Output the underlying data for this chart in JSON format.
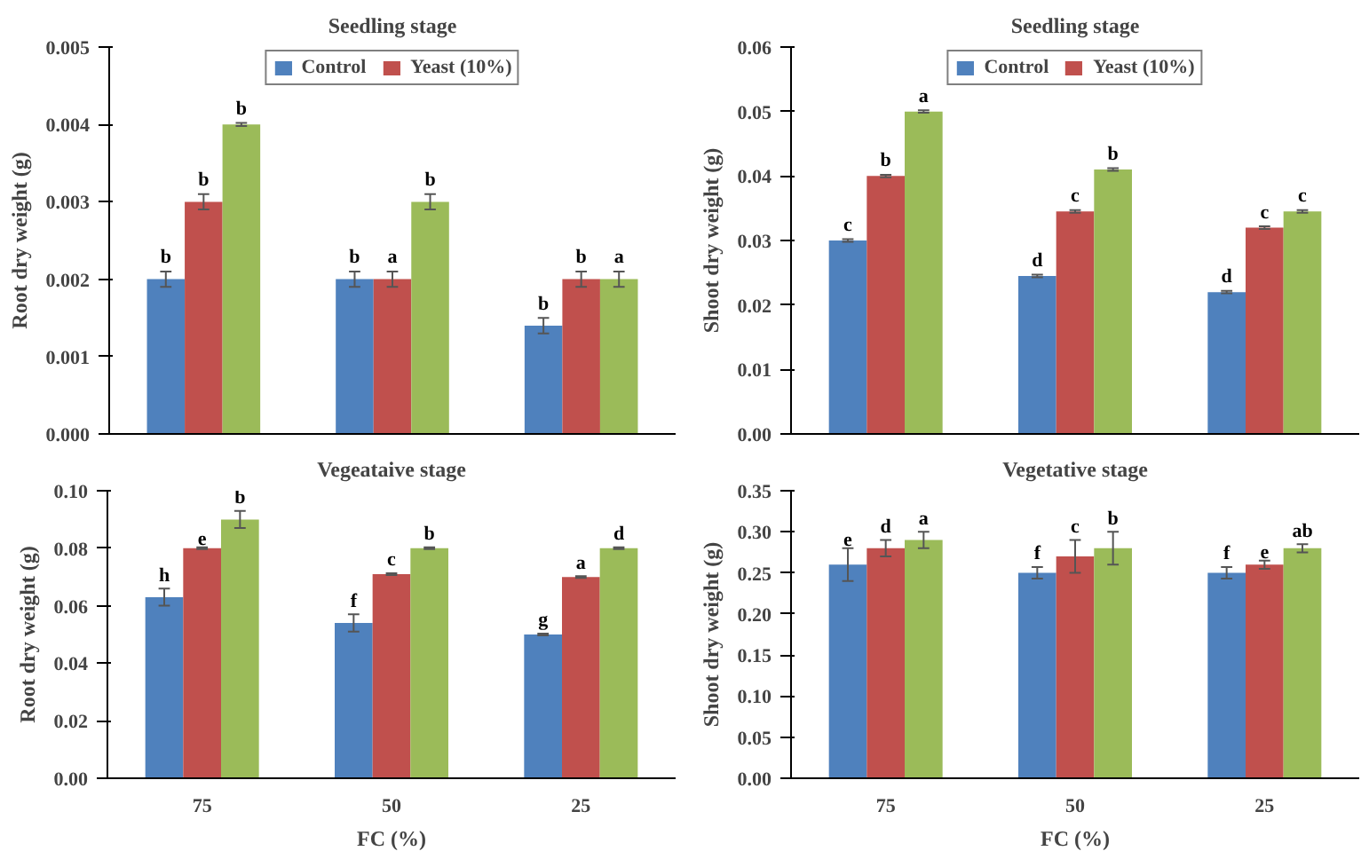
{
  "chart_data": [
    {
      "type": "bar",
      "title": "Seedling stage",
      "ylabel": "Root dry weight (g)",
      "categories": [
        "75",
        "50",
        "25"
      ],
      "tick_labels": "y",
      "ylim": [
        0,
        0.005
      ],
      "yticks": [
        {
          "value": 0,
          "label": "0.000"
        },
        {
          "value": 0.001,
          "label": "0.001"
        },
        {
          "value": 0.002,
          "label": "0.002"
        },
        {
          "value": 0.003,
          "label": "0.003"
        },
        {
          "value": 0.004,
          "label": "0.004"
        },
        {
          "value": 0.005,
          "label": "0.005"
        }
      ],
      "grid": false,
      "legend": "top",
      "series": [
        {
          "name": "Control",
          "color": "#4f81bd",
          "values": [
            0.002,
            0.002,
            0.0014
          ],
          "errors": [
            0.0001,
            0.0001,
            0.0001
          ],
          "value_labels": [
            "b",
            "b",
            "b"
          ]
        },
        {
          "name": "Yeast (10%)",
          "color": "#c0504d",
          "values": [
            0.003,
            0.002,
            0.002
          ],
          "errors": [
            0.0001,
            0.0001,
            0.0001
          ],
          "value_labels": [
            "b",
            "a",
            "b"
          ]
        },
        {
          "color": "#9bbb59",
          "values": [
            0.004,
            0.003,
            0.002
          ],
          "errors": [
            2e-05,
            0.0001,
            0.0001
          ],
          "value_labels": [
            "b",
            "b",
            "a"
          ]
        }
      ]
    },
    {
      "type": "bar",
      "title": "Seedling stage",
      "ylabel": "Shoot dry weight (g)",
      "categories": [
        "75",
        "50",
        "25"
      ],
      "tick_labels": "y",
      "ylim": [
        0,
        0.06
      ],
      "yticks": [
        {
          "value": 0,
          "label": "0.00"
        },
        0.01,
        0.02,
        0.03,
        0.04,
        0.05,
        0.06
      ],
      "grid": false,
      "legend": "top",
      "series": [
        {
          "name": "Control",
          "color": "#4f81bd",
          "values": [
            0.03,
            0.0245,
            0.022
          ],
          "errors": [
            0.0002,
            0.0002,
            0.0002
          ],
          "value_labels": [
            "c",
            "d",
            "d"
          ]
        },
        {
          "name": "Yeast (10%)",
          "color": "#c0504d",
          "values": [
            0.04,
            0.0345,
            0.032
          ],
          "errors": [
            0.0002,
            0.0002,
            0.0002
          ],
          "value_labels": [
            "b",
            "c",
            "c"
          ]
        },
        {
          "color": "#9bbb59",
          "values": [
            0.05,
            0.041,
            0.0345
          ],
          "errors": [
            0.0002,
            0.0002,
            0.0002
          ],
          "value_labels": [
            "a",
            "b",
            "c"
          ]
        }
      ]
    },
    {
      "type": "bar",
      "title": "Vegeataive stage",
      "ylabel": "Root dry weight (g)",
      "xlabel": "FC (%)",
      "categories": [
        "75",
        "50",
        "25"
      ],
      "ylim": [
        0,
        0.1
      ],
      "yticks": [
        {
          "value": 0,
          "label": "0.00"
        },
        0.02,
        0.04,
        0.06,
        0.08,
        {
          "value": 0.1,
          "label": "0.10"
        }
      ],
      "grid": false,
      "series": [
        {
          "color": "#4f81bd",
          "values": [
            0.063,
            0.054,
            0.05
          ],
          "errors": [
            0.003,
            0.003,
            0.0003
          ],
          "value_labels": [
            "h",
            "f",
            "g"
          ]
        },
        {
          "color": "#c0504d",
          "values": [
            0.08,
            0.071,
            0.07
          ],
          "errors": [
            0.0003,
            0.0003,
            0.0003
          ],
          "value_labels": [
            "e",
            "c",
            "a"
          ]
        },
        {
          "color": "#9bbb59",
          "values": [
            0.09,
            0.08,
            0.08
          ],
          "errors": [
            0.003,
            0.0003,
            0.0003
          ],
          "value_labels": [
            "b",
            "b",
            "d"
          ]
        }
      ]
    },
    {
      "type": "bar",
      "title": "Vegetative stage",
      "ylabel": "Shoot dry weight (g)",
      "xlabel": "FC (%)",
      "categories": [
        "75",
        "50",
        "25"
      ],
      "ylim": [
        0,
        0.35
      ],
      "yticks": [
        {
          "value": 0,
          "label": "0.00"
        },
        0.05,
        {
          "value": 0.1,
          "label": "0.10"
        },
        0.15,
        {
          "value": 0.2,
          "label": "0.20"
        },
        0.25,
        {
          "value": 0.3,
          "label": "0.30"
        },
        0.35
      ],
      "grid": false,
      "series": [
        {
          "color": "#4f81bd",
          "values": [
            0.26,
            0.25,
            0.25
          ],
          "errors": [
            0.02,
            0.007,
            0.007
          ],
          "value_labels": [
            "e",
            "f",
            "f"
          ]
        },
        {
          "color": "#c0504d",
          "values": [
            0.28,
            0.27,
            0.26
          ],
          "errors": [
            0.01,
            0.02,
            0.005
          ],
          "value_labels": [
            "d",
            "c",
            "e"
          ]
        },
        {
          "color": "#9bbb59",
          "values": [
            0.29,
            0.28,
            0.28
          ],
          "errors": [
            0.01,
            0.02,
            0.005
          ],
          "value_labels": [
            "a",
            "b",
            "ab"
          ]
        }
      ]
    }
  ]
}
